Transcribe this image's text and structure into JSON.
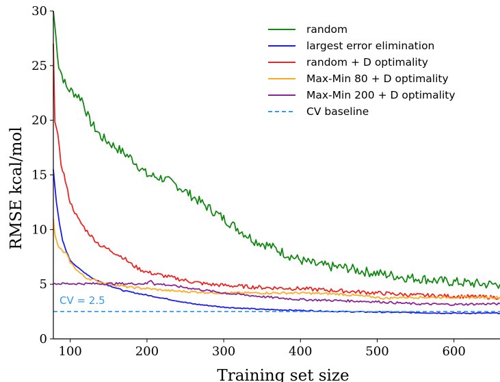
{
  "chart_data": {
    "type": "line",
    "xlabel": "Training set size",
    "ylabel": "RMSE kcal/mol",
    "xlim": [
      78,
      660
    ],
    "ylim": [
      0,
      30
    ],
    "xticks": [
      100,
      200,
      300,
      400,
      500,
      600
    ],
    "yticks": [
      0,
      5,
      10,
      15,
      20,
      25,
      30
    ],
    "grid": false,
    "legend_position": "top-right",
    "annotation": {
      "text": "CV = 2.5",
      "x": 86,
      "y": 3.2,
      "color": "#3399ee"
    },
    "series": [
      {
        "name": "random",
        "color": "#118811",
        "dashed": false,
        "jitter": 0.45,
        "x": [
          78,
          85,
          95,
          105,
          115,
          125,
          140,
          160,
          180,
          200,
          220,
          240,
          260,
          280,
          300,
          320,
          340,
          360,
          380,
          400,
          420,
          440,
          460,
          480,
          500,
          520,
          540,
          560,
          580,
          600,
          620,
          640,
          660
        ],
        "y": [
          30,
          25,
          23,
          22.5,
          22,
          20,
          18.5,
          17.5,
          16.5,
          15,
          14.7,
          14,
          13,
          12,
          11,
          10,
          9,
          8.5,
          7.8,
          7.2,
          6.8,
          6.6,
          6.5,
          6.2,
          6,
          5.8,
          5.6,
          5.5,
          5.3,
          5.2,
          5.1,
          5,
          5
        ]
      },
      {
        "name": "largest error elimination",
        "color": "#1a1aee",
        "dashed": false,
        "jitter": 0.05,
        "x": [
          78,
          82,
          86,
          90,
          95,
          100,
          110,
          120,
          130,
          150,
          170,
          200,
          230,
          260,
          300,
          350,
          400,
          450,
          500,
          550,
          600,
          660
        ],
        "y": [
          15.5,
          12.5,
          10.5,
          9,
          8,
          7.2,
          6.5,
          6,
          5.5,
          4.9,
          4.4,
          4,
          3.6,
          3.2,
          2.9,
          2.7,
          2.6,
          2.5,
          2.45,
          2.4,
          2.35,
          2.35
        ]
      },
      {
        "name": "random + D optimality",
        "color": "#ee2222",
        "dashed": false,
        "jitter": 0.18,
        "x": [
          78,
          80,
          84,
          88,
          92,
          95,
          100,
          110,
          120,
          130,
          140,
          150,
          160,
          170,
          180,
          190,
          200,
          220,
          240,
          260,
          280,
          300,
          350,
          400,
          450,
          500,
          550,
          600,
          660
        ],
        "y": [
          27,
          20,
          18.5,
          16,
          15,
          14,
          12.5,
          11,
          10,
          9.2,
          8.5,
          8.2,
          7.8,
          7.4,
          6.8,
          6.4,
          6.1,
          5.8,
          5.5,
          5.2,
          5,
          4.9,
          4.7,
          4.6,
          4.4,
          4.2,
          4,
          3.9,
          3.8
        ]
      },
      {
        "name": "Max-Min 80 + D optimality",
        "color": "#ffaa22",
        "dashed": false,
        "jitter": 0.1,
        "x": [
          78,
          80,
          84,
          90,
          95,
          100,
          110,
          120,
          140,
          160,
          180,
          200,
          230,
          260,
          300,
          350,
          400,
          450,
          500,
          510,
          530,
          550,
          580,
          600,
          660
        ],
        "y": [
          11,
          9.5,
          8.5,
          8,
          7.8,
          7,
          6.2,
          5.6,
          5.2,
          4.9,
          4.7,
          4.6,
          4.4,
          4.3,
          4.2,
          4.2,
          4.2,
          4.1,
          3.8,
          3.7,
          3.8,
          3.8,
          3.8,
          3.8,
          3.8
        ]
      },
      {
        "name": "Max-Min 200 + D optimality",
        "color": "#882299",
        "dashed": false,
        "jitter": 0.1,
        "x": [
          78,
          200,
          205,
          210,
          220,
          240,
          260,
          280,
          300,
          330,
          360,
          400,
          450,
          500,
          550,
          600,
          640,
          660
        ],
        "y": [
          5.05,
          5.05,
          5.4,
          5,
          5,
          4.8,
          4.6,
          4.4,
          4.2,
          4,
          3.8,
          3.6,
          3.5,
          3.4,
          3.2,
          3.15,
          3.2,
          3.2
        ]
      },
      {
        "name": "CV baseline",
        "color": "#3399ee",
        "dashed": true,
        "jitter": 0,
        "x": [
          78,
          660
        ],
        "y": [
          2.5,
          2.5
        ]
      }
    ]
  }
}
